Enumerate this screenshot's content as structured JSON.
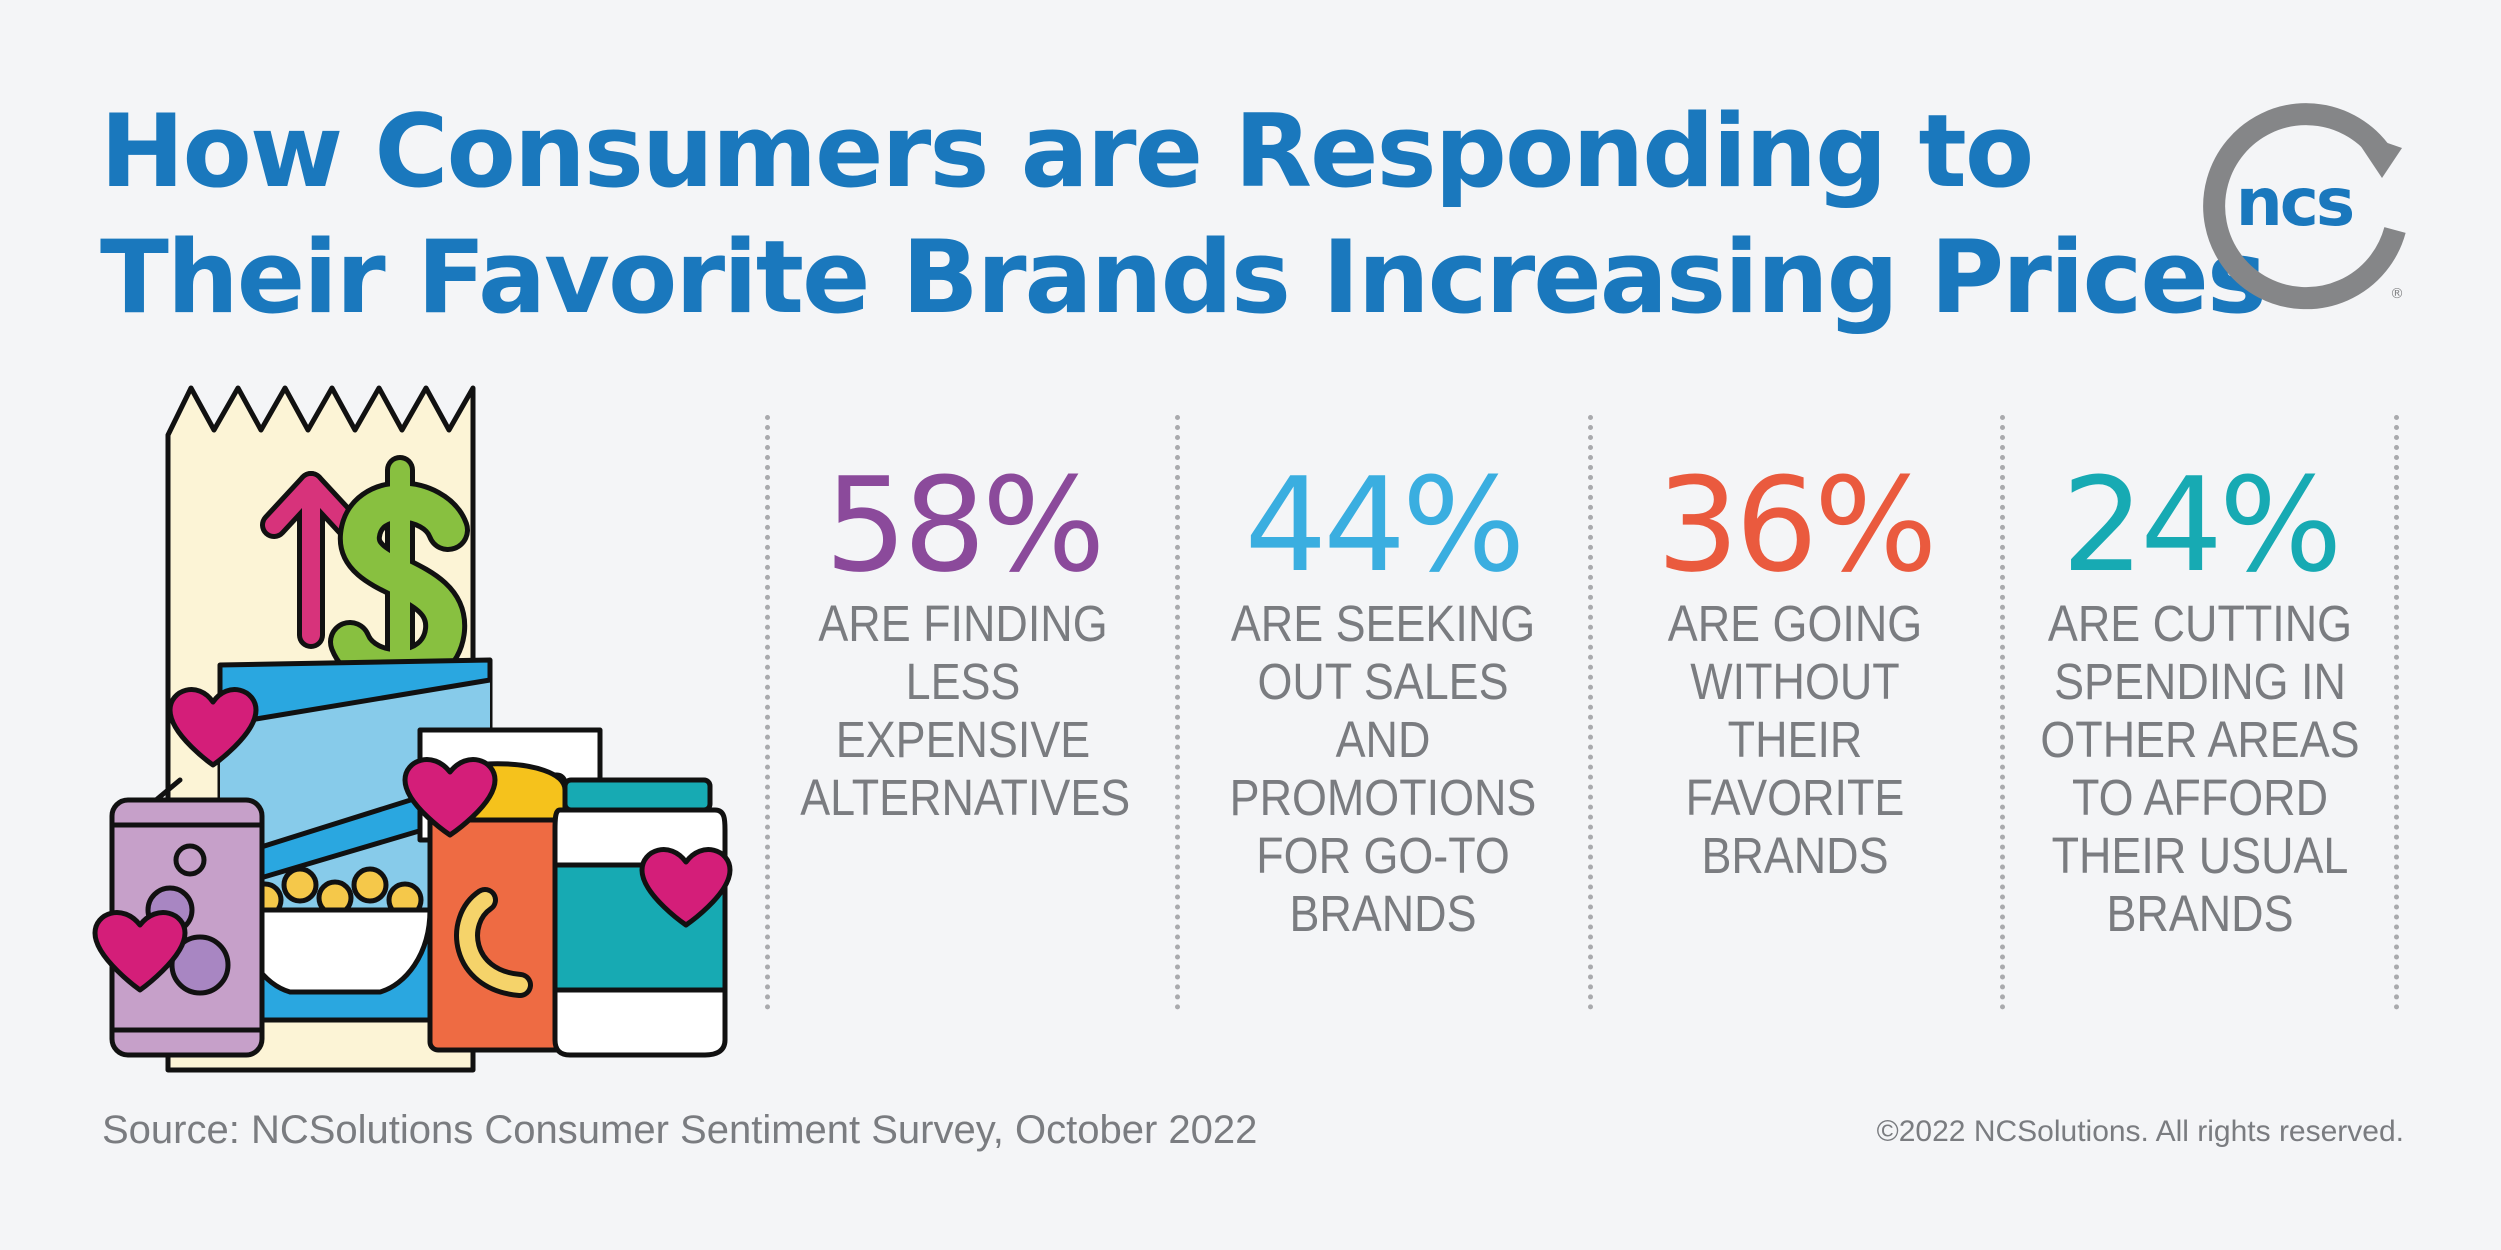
{
  "title": {
    "line1": "How Consumers are Responding to",
    "line2": "Their Favorite Brands Increasing Prices"
  },
  "logo": {
    "text": "ncs",
    "mark": "®",
    "icon": "ncs-logo"
  },
  "colors": {
    "title": "#1a78bd",
    "stat1": "#8b4a9b",
    "stat2": "#3aaee0",
    "stat3": "#ea5a3e",
    "stat4": "#17aab3",
    "body_text": "#7a7c80"
  },
  "chart_data": {
    "type": "bar",
    "categories": [
      "ARE FINDING LESS EXPENSIVE ALTERNATIVES",
      "ARE SEEKING OUT SALES AND PROMOTIONS FOR GO-TO BRANDS",
      "ARE GOING WITHOUT THEIR FAVORITE BRANDS",
      "ARE CUTTING SPENDING IN OTHER AREAS TO AFFORD THEIR USUAL BRANDS"
    ],
    "values": [
      58,
      44,
      36,
      24
    ],
    "title": "How Consumers are Responding to Their Favorite Brands Increasing Prices"
  },
  "stats": [
    {
      "value": "58%",
      "lines": [
        "ARE FINDING",
        "LESS",
        "EXPENSIVE",
        "ALTERNATIVES"
      ]
    },
    {
      "value": "44%",
      "lines": [
        "ARE SEEKING",
        "OUT SALES",
        "AND",
        "PROMOTIONS",
        "FOR GO-TO",
        "BRANDS"
      ]
    },
    {
      "value": "36%",
      "lines": [
        "ARE GOING",
        "WITHOUT",
        "THEIR",
        "FAVORITE",
        "BRANDS"
      ]
    },
    {
      "value": "24%",
      "lines": [
        "ARE CUTTING",
        "SPENDING IN",
        "OTHER AREAS",
        "TO AFFORD",
        "THEIR USUAL",
        "BRANDS"
      ]
    }
  ],
  "illustration": {
    "icons": [
      "receipt-icon",
      "up-arrow-icon",
      "dollar-sign-icon",
      "soda-can-icon",
      "cereal-box-icon",
      "snack-canister-icon",
      "jar-icon",
      "heart-icon"
    ]
  },
  "footer": {
    "source": "Source: NCSolutions Consumer Sentiment Survey, October 2022",
    "copyright": "©2022 NCSolutions. All rights reserved."
  }
}
